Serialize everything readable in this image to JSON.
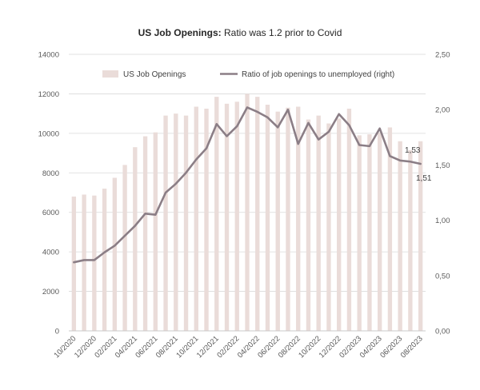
{
  "chart_data": {
    "type": "bar",
    "title_bold": "US Job Openings:",
    "title_rest": " Ratio was 1.2 prior to Covid",
    "xlabel": "",
    "ylabel": "",
    "y_left_lim": [
      0,
      14000
    ],
    "y_left_ticks": [
      "0",
      "2000",
      "4000",
      "6000",
      "8000",
      "10000",
      "12000",
      "14000"
    ],
    "y_right_lim": [
      0,
      2.5
    ],
    "y_right_ticks": [
      "0,00",
      "0,50",
      "1,00",
      "1,50",
      "2,00",
      "2,50"
    ],
    "x_tick_labels": [
      "10/2020",
      "12/2020",
      "02/2021",
      "04/2021",
      "06/2021",
      "08/2021",
      "10/2021",
      "12/2021",
      "02/2022",
      "04/2022",
      "06/2022",
      "08/2022",
      "10/2022",
      "12/2022",
      "02/2023",
      "04/2023",
      "06/2023",
      "08/2023"
    ],
    "categories": [
      "10/2020",
      "11/2020",
      "12/2020",
      "01/2021",
      "02/2021",
      "03/2021",
      "04/2021",
      "05/2021",
      "06/2021",
      "07/2021",
      "08/2021",
      "09/2021",
      "10/2021",
      "11/2021",
      "12/2021",
      "01/2022",
      "02/2022",
      "03/2022",
      "04/2022",
      "05/2022",
      "06/2022",
      "07/2022",
      "08/2022",
      "09/2022",
      "10/2022",
      "11/2022",
      "12/2022",
      "01/2023",
      "02/2023",
      "03/2023",
      "04/2023",
      "05/2023",
      "06/2023",
      "07/2023",
      "08/2023"
    ],
    "series": [
      {
        "name": "US Job Openings",
        "type": "bar",
        "axis": "left",
        "color": "#eadcd9",
        "values": [
          6800,
          6900,
          6850,
          7200,
          7750,
          8400,
          9300,
          9850,
          10050,
          10900,
          11000,
          10900,
          11350,
          11250,
          11850,
          11500,
          11600,
          12000,
          11850,
          11450,
          11100,
          11300,
          11350,
          10700,
          10900,
          10500,
          10750,
          11250,
          9900,
          9950,
          10050,
          10300,
          9600,
          9150,
          9600
        ]
      },
      {
        "name": "Ratio of job openings to unemployed (right)",
        "type": "line",
        "axis": "right",
        "color": "#8b7e86",
        "values": [
          0.62,
          0.64,
          0.64,
          0.71,
          0.77,
          0.86,
          0.95,
          1.06,
          1.05,
          1.25,
          1.33,
          1.43,
          1.55,
          1.65,
          1.87,
          1.76,
          1.85,
          2.02,
          1.98,
          1.93,
          1.84,
          2.0,
          1.69,
          1.88,
          1.73,
          1.8,
          1.96,
          1.86,
          1.68,
          1.67,
          1.83,
          1.58,
          1.54,
          1.53,
          1.51
        ]
      }
    ],
    "annotations": [
      "1,53",
      "1,51"
    ],
    "legend_position": "top",
    "grid": "horizontal"
  },
  "colors": {
    "bar": "#eadcd9",
    "line": "#8b7e86",
    "grid": "#d9d9d9",
    "text": "#595959",
    "title": "#262626"
  }
}
